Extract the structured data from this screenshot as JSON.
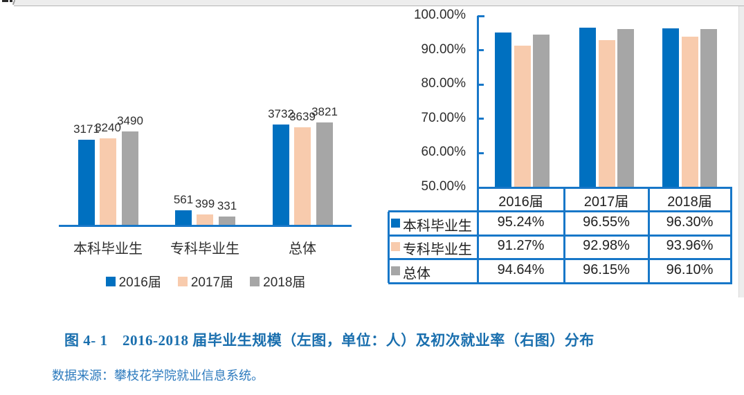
{
  "page": {
    "caption": "图 4- 1　2016-2018 届毕业生规模（左图，单位：人）及初次就业率（右图）分布",
    "source_note": "数据来源：攀枝花学院就业信息系统。"
  },
  "colors": {
    "series_2016": "#0070C0",
    "series_2017": "#F8CBAD",
    "series_2018": "#A6A6A6",
    "chart_line_blue": "#1777C8",
    "caption_blue": "#1A6FAE",
    "source_blue": "#2E7BBE",
    "label_text": "#2E2E2E"
  },
  "chart_data": [
    {
      "type": "bar",
      "title": "毕业生规模（单位：人）",
      "categories": [
        "本科毕业生",
        "专科毕业生",
        "总体"
      ],
      "series": [
        {
          "name": "2016届",
          "values": [
            3171,
            561,
            3732
          ]
        },
        {
          "name": "2017届",
          "values": [
            3240,
            399,
            3639
          ]
        },
        {
          "name": "2018届",
          "values": [
            3490,
            331,
            3821
          ]
        }
      ],
      "ylim": [
        0,
        3821
      ],
      "grid": false,
      "data_labels": true,
      "legend_position": "bottom"
    },
    {
      "type": "bar",
      "title": "初次就业率",
      "categories": [
        "2016届",
        "2017届",
        "2018届"
      ],
      "series": [
        {
          "name": "本科毕业生",
          "values": [
            95.24,
            96.55,
            96.3
          ]
        },
        {
          "name": "专科毕业生",
          "values": [
            91.27,
            92.98,
            93.96
          ]
        },
        {
          "name": "总体",
          "values": [
            94.64,
            96.15,
            96.1
          ]
        }
      ],
      "ylim": [
        50,
        100
      ],
      "grid": false,
      "ytick_labels": [
        "100.00%",
        "90.00%",
        "80.00%",
        "70.00%",
        "60.00%",
        "50.00%"
      ],
      "ytick_values": [
        100,
        90,
        80,
        70,
        60,
        50
      ],
      "legend_position": "data-table-left",
      "table_values": [
        [
          "95.24%",
          "96.55%",
          "96.30%"
        ],
        [
          "91.27%",
          "92.98%",
          "93.96%"
        ],
        [
          "94.64%",
          "96.15%",
          "96.10%"
        ]
      ]
    }
  ]
}
